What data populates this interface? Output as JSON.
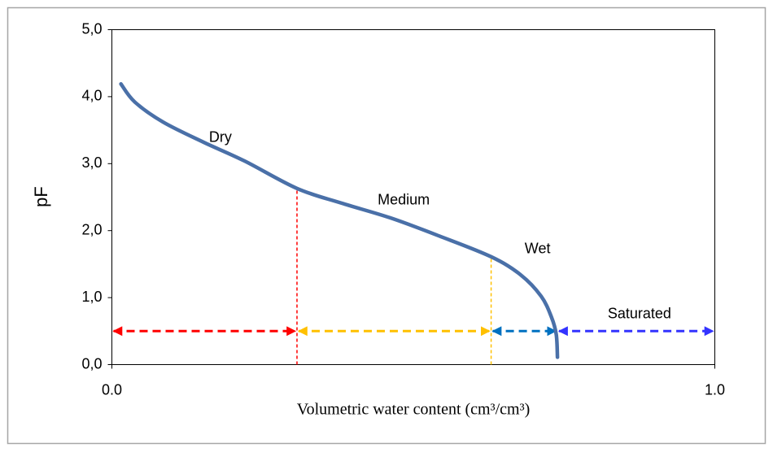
{
  "chart_data": {
    "type": "line",
    "x_label": "Volumetric water content (cm³/cm³)",
    "y_label": "pF",
    "xlim": [
      0,
      1
    ],
    "xticks": [
      {
        "value": 0,
        "label": "0.0"
      },
      {
        "value": 1,
        "label": "1.0"
      }
    ],
    "ylim": [
      0,
      5
    ],
    "yticks": [
      {
        "value": 0,
        "label": "0,0"
      },
      {
        "value": 1,
        "label": "1,0"
      },
      {
        "value": 2,
        "label": "2,0"
      },
      {
        "value": 3,
        "label": "3,0"
      },
      {
        "value": 4,
        "label": "4,0"
      },
      {
        "value": 5,
        "label": "5,0"
      }
    ],
    "grid": false,
    "series": [
      {
        "color": "#4a70a8",
        "x": [
          0.015,
          0.038,
          0.085,
          0.152,
          0.22,
          0.307,
          0.381,
          0.462,
          0.543,
          0.629,
          0.678,
          0.712,
          0.729,
          0.737,
          0.739
        ],
        "values": [
          4.19,
          3.92,
          3.62,
          3.32,
          3.04,
          2.63,
          2.41,
          2.19,
          1.92,
          1.61,
          1.34,
          1.02,
          0.71,
          0.45,
          0.11
        ]
      }
    ],
    "dividers": [
      {
        "x": 0.307,
        "top": 2.63,
        "color": "#ff0000"
      },
      {
        "x": 0.629,
        "top": 1.61,
        "color": "#ffc000"
      }
    ],
    "arrow_y": 0.5,
    "zones": [
      {
        "from": 0,
        "to": 0.307,
        "color": "#ff0000"
      },
      {
        "from": 0.307,
        "to": 0.629,
        "color": "#ffc000"
      },
      {
        "from": 0.629,
        "to": 0.739,
        "color": "#0070c0"
      },
      {
        "from": 0.739,
        "to": 1,
        "color": "#3333ff"
      }
    ],
    "annotations": [
      {
        "text": "Dry",
        "x": 0.18,
        "y": 3.38
      },
      {
        "text": "Medium",
        "x": 0.484,
        "y": 2.45
      },
      {
        "text": "Wet",
        "x": 0.706,
        "y": 1.72
      },
      {
        "text": "Saturated",
        "x": 0.875,
        "y": 0.75
      }
    ]
  }
}
